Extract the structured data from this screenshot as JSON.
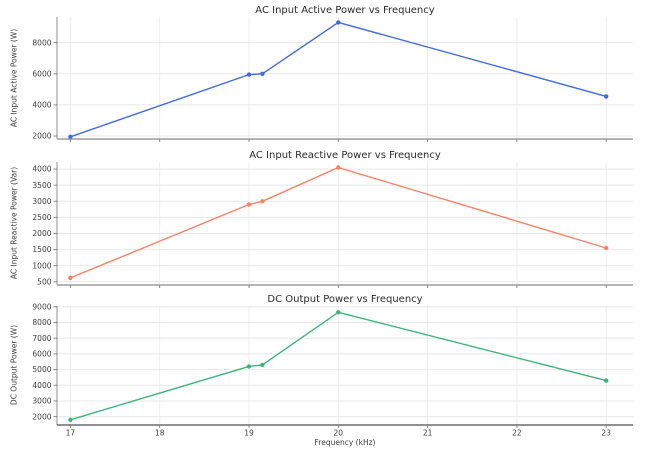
{
  "figure": {
    "background": "#ffffff",
    "xlabel": "Frequency (kHz)"
  },
  "chart_data": [
    {
      "type": "line",
      "title": "AC Input Active Power vs Frequency",
      "xlabel": "",
      "ylabel": "AC Input Active Power (W)",
      "x": [
        17,
        19,
        19.15,
        20,
        23
      ],
      "values": [
        1950,
        5950,
        6000,
        9300,
        4550
      ],
      "color": "#4169e1",
      "marker": "circle",
      "grid": true,
      "legend": "none",
      "xlim": [
        16.85,
        23.3
      ],
      "ylim": [
        1810,
        9650
      ],
      "xticks": [
        17,
        18,
        19,
        20,
        21,
        22,
        23
      ],
      "yticks": [
        2000,
        4000,
        6000,
        8000
      ],
      "show_xtick_labels": false
    },
    {
      "type": "line",
      "title": "AC Input Reactive Power vs Frequency",
      "xlabel": "",
      "ylabel": "AC Input Reactive Power (Var)",
      "x": [
        17,
        19,
        19.15,
        20,
        23
      ],
      "values": [
        620,
        2900,
        3000,
        4050,
        1550
      ],
      "color": "#fa8264",
      "marker": "circle",
      "grid": true,
      "legend": "none",
      "xlim": [
        16.85,
        23.3
      ],
      "ylim": [
        400,
        4220
      ],
      "xticks": [
        17,
        18,
        19,
        20,
        21,
        22,
        23
      ],
      "yticks": [
        500,
        1000,
        1500,
        2000,
        2500,
        3000,
        3500,
        4000
      ],
      "show_xtick_labels": false
    },
    {
      "type": "line",
      "title": "DC Output Power vs Frequency",
      "xlabel": "Frequency (kHz)",
      "ylabel": "DC Output Power (W)",
      "x": [
        17,
        19,
        19.15,
        20,
        23
      ],
      "values": [
        1800,
        5200,
        5300,
        8650,
        4300
      ],
      "color": "#3db578",
      "marker": "circle",
      "grid": true,
      "legend": "none",
      "xlim": [
        16.85,
        23.3
      ],
      "ylim": [
        1470,
        9050
      ],
      "xticks": [
        17,
        18,
        19,
        20,
        21,
        22,
        23
      ],
      "yticks": [
        2000,
        3000,
        4000,
        5000,
        6000,
        7000,
        8000,
        9000
      ],
      "show_xtick_labels": true
    }
  ]
}
